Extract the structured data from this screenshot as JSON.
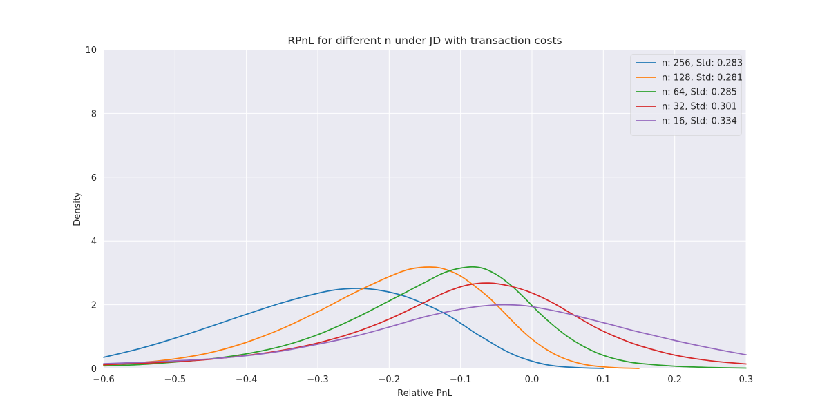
{
  "chart_data": {
    "type": "line",
    "title": "RPnL for different n under JD with transaction costs",
    "xlabel": "Relative PnL",
    "ylabel": "Density",
    "xlim": [
      -0.6,
      0.3
    ],
    "ylim": [
      0,
      10
    ],
    "x_ticks": [
      "−0.6",
      "−0.5",
      "−0.4",
      "−0.3",
      "−0.2",
      "−0.1",
      "0.0",
      "0.1",
      "0.2",
      "0.3"
    ],
    "y_ticks": [
      "0",
      "2",
      "4",
      "6",
      "8",
      "10"
    ],
    "grid": true,
    "legend_position": "top-right",
    "background": "#eaeaf2",
    "series": [
      {
        "name": "n: 256, Std: 0.283",
        "color": "#1f77b4",
        "x": [
          -0.6,
          -0.55,
          -0.5,
          -0.45,
          -0.4,
          -0.35,
          -0.3,
          -0.27,
          -0.24,
          -0.21,
          -0.18,
          -0.15,
          -0.12,
          -0.1,
          -0.08,
          -0.06,
          -0.04,
          -0.02,
          0.0,
          0.02,
          0.04,
          0.06,
          0.08,
          0.1
        ],
        "y": [
          0.35,
          0.62,
          0.95,
          1.32,
          1.7,
          2.06,
          2.36,
          2.48,
          2.51,
          2.44,
          2.28,
          2.02,
          1.7,
          1.42,
          1.12,
          0.85,
          0.59,
          0.38,
          0.23,
          0.12,
          0.06,
          0.03,
          0.01,
          0.0
        ]
      },
      {
        "name": "n: 128, Std: 0.281",
        "color": "#ff7f0e",
        "x": [
          -0.6,
          -0.55,
          -0.5,
          -0.45,
          -0.4,
          -0.35,
          -0.3,
          -0.25,
          -0.2,
          -0.17,
          -0.14,
          -0.12,
          -0.1,
          -0.08,
          -0.06,
          -0.04,
          -0.02,
          0.0,
          0.02,
          0.04,
          0.06,
          0.08,
          0.1,
          0.12,
          0.15
        ],
        "y": [
          0.1,
          0.18,
          0.3,
          0.5,
          0.82,
          1.25,
          1.78,
          2.36,
          2.88,
          3.12,
          3.18,
          3.1,
          2.9,
          2.58,
          2.22,
          1.78,
          1.32,
          0.92,
          0.6,
          0.36,
          0.2,
          0.1,
          0.05,
          0.02,
          0.0
        ]
      },
      {
        "name": "n: 64, Std: 0.285",
        "color": "#2ca02c",
        "x": [
          -0.6,
          -0.55,
          -0.5,
          -0.45,
          -0.4,
          -0.35,
          -0.3,
          -0.25,
          -0.2,
          -0.15,
          -0.12,
          -0.09,
          -0.07,
          -0.05,
          -0.03,
          -0.01,
          0.01,
          0.03,
          0.05,
          0.07,
          0.09,
          0.11,
          0.13,
          0.15,
          0.2,
          0.25,
          0.3
        ],
        "y": [
          0.08,
          0.12,
          0.2,
          0.3,
          0.46,
          0.7,
          1.06,
          1.55,
          2.12,
          2.7,
          3.03,
          3.18,
          3.15,
          2.95,
          2.62,
          2.2,
          1.75,
          1.35,
          1.0,
          0.72,
          0.5,
          0.34,
          0.23,
          0.16,
          0.07,
          0.03,
          0.01
        ]
      },
      {
        "name": "n: 32, Std: 0.301",
        "color": "#d62728",
        "x": [
          -0.6,
          -0.55,
          -0.5,
          -0.45,
          -0.4,
          -0.35,
          -0.3,
          -0.25,
          -0.2,
          -0.15,
          -0.12,
          -0.09,
          -0.06,
          -0.03,
          0.0,
          0.03,
          0.06,
          0.09,
          0.12,
          0.15,
          0.2,
          0.25,
          0.3
        ],
        "y": [
          0.12,
          0.16,
          0.21,
          0.29,
          0.41,
          0.57,
          0.8,
          1.12,
          1.55,
          2.08,
          2.4,
          2.62,
          2.68,
          2.58,
          2.37,
          2.05,
          1.66,
          1.28,
          0.97,
          0.72,
          0.42,
          0.24,
          0.14
        ]
      },
      {
        "name": "n: 16, Std: 0.334",
        "color": "#9467bd",
        "x": [
          -0.6,
          -0.55,
          -0.5,
          -0.45,
          -0.4,
          -0.35,
          -0.3,
          -0.25,
          -0.2,
          -0.15,
          -0.1,
          -0.07,
          -0.04,
          -0.01,
          0.02,
          0.05,
          0.08,
          0.11,
          0.14,
          0.17,
          0.2,
          0.25,
          0.3
        ],
        "y": [
          0.15,
          0.19,
          0.24,
          0.3,
          0.4,
          0.55,
          0.76,
          1.0,
          1.3,
          1.62,
          1.86,
          1.96,
          2.0,
          1.97,
          1.86,
          1.72,
          1.55,
          1.38,
          1.2,
          1.04,
          0.88,
          0.64,
          0.43
        ]
      }
    ]
  }
}
